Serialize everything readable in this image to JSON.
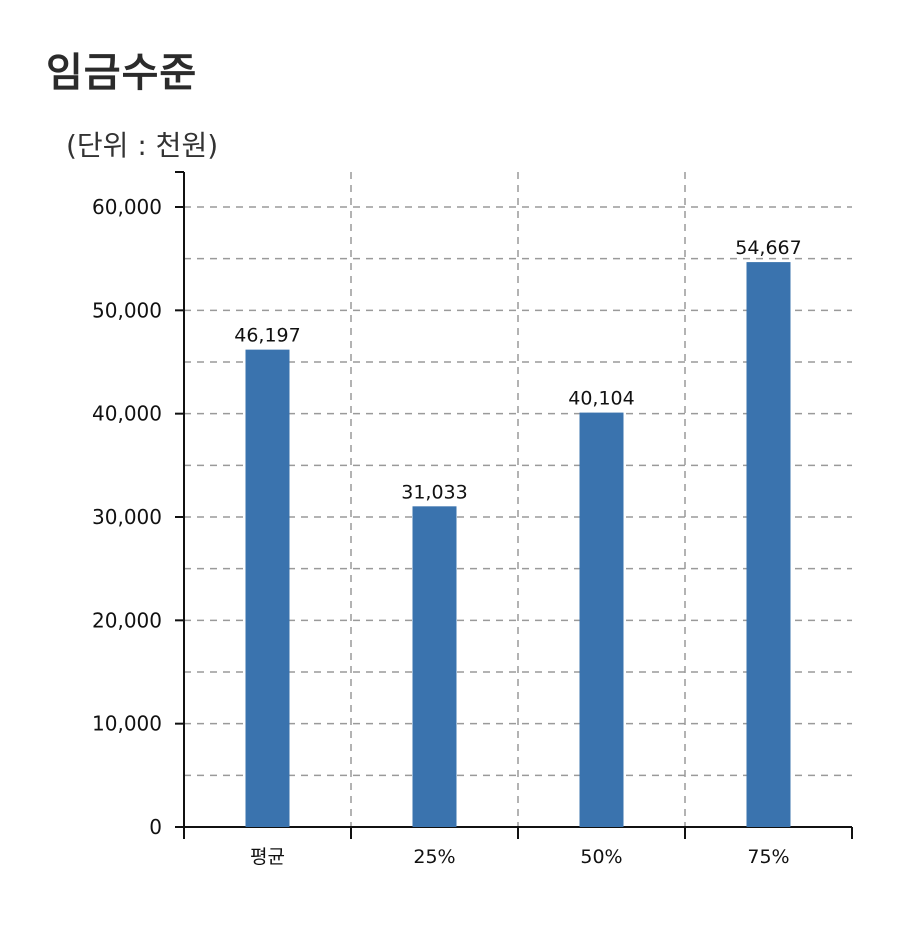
{
  "title": "임금수준",
  "unit_label": "(단위 : 천원)",
  "chart_data": {
    "type": "bar",
    "title": "임금수준",
    "ylabel": "(단위 : 천원)",
    "xlabel": "",
    "categories": [
      "평균",
      "25%",
      "50%",
      "75%"
    ],
    "values": [
      46197,
      31033,
      40104,
      54667
    ],
    "value_labels": [
      "46,197",
      "31,033",
      "40,104",
      "54,667"
    ],
    "ylim": [
      0,
      60000
    ],
    "yticks": [
      0,
      10000,
      20000,
      30000,
      40000,
      50000,
      60000
    ],
    "ytick_labels": [
      "0",
      "10,000",
      "20,000",
      "30,000",
      "40,000",
      "50,000",
      "60,000"
    ],
    "grid": true,
    "grid_minor_step": 5000,
    "bar_color": "#3a73ae"
  }
}
